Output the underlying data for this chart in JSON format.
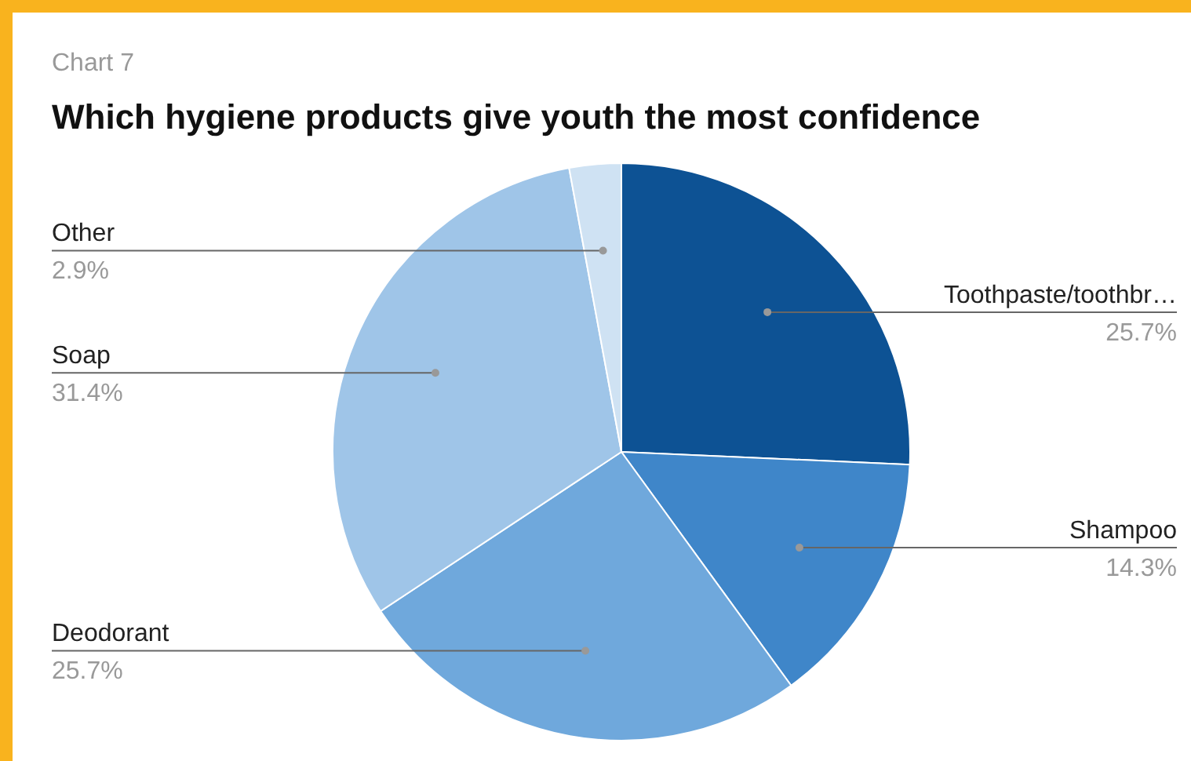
{
  "chart_data": {
    "type": "pie",
    "subtitle": "Chart 7",
    "title": "Which hygiene products give youth the most confidence",
    "categories": [
      "Toothpaste/toothbr…",
      "Shampoo",
      "Deodorant",
      "Soap",
      "Other"
    ],
    "values": [
      25.7,
      14.3,
      25.7,
      31.4,
      2.9
    ],
    "value_labels": [
      "25.7%",
      "14.3%",
      "25.7%",
      "31.4%",
      "2.9%"
    ],
    "colors": [
      "#0d5294",
      "#3f86c9",
      "#6fa8dc",
      "#9fc5e8",
      "#cfe2f3"
    ],
    "legend": false
  }
}
